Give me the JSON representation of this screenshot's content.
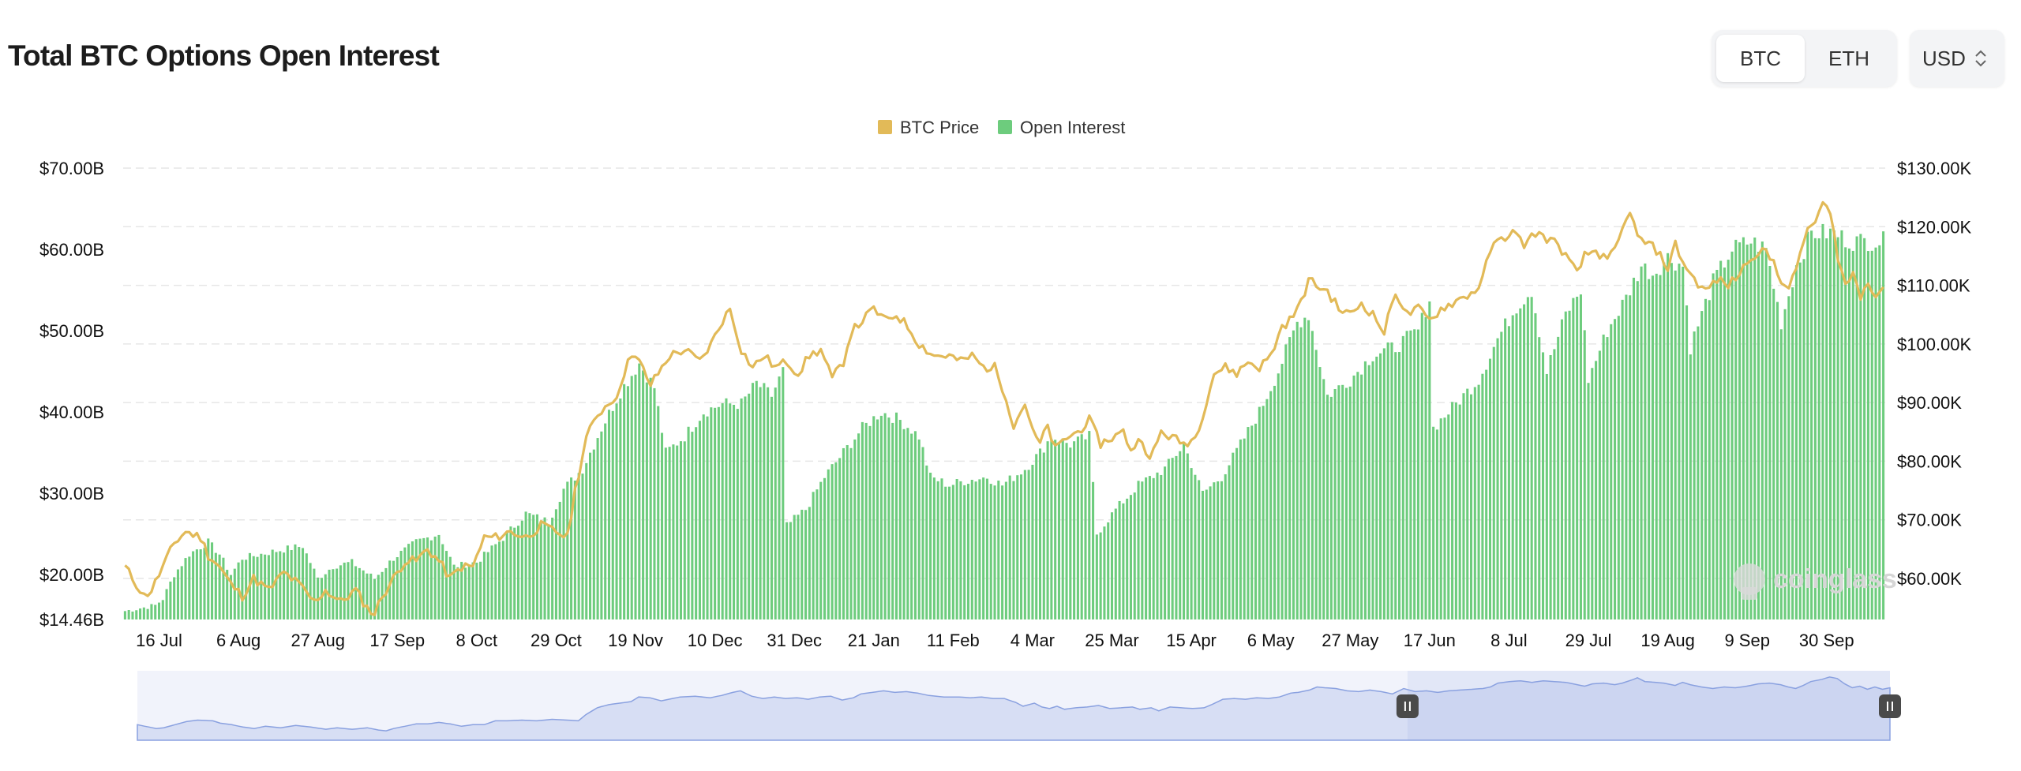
{
  "header": {
    "title": "Total BTC Options Open Interest",
    "tabs": [
      {
        "label": "BTC",
        "active": true
      },
      {
        "label": "ETH",
        "active": false
      }
    ],
    "currency": "USD",
    "currency_icon": "chevron-updown-icon"
  },
  "watermark": "coinglass",
  "colors": {
    "price": "#e2ba58",
    "open_interest": "#6dcc7d",
    "grid": "#e6e6e6",
    "navigator": "#8aa1e0"
  },
  "chart_data": {
    "type": "bar",
    "legend": [
      {
        "name": "BTC Price",
        "color": "#e2ba58",
        "type": "line"
      },
      {
        "name": "Open Interest",
        "color": "#6dcc7d",
        "type": "bar"
      }
    ],
    "left_axis": {
      "ticks": [
        "$14.46B",
        "$20.00B",
        "$30.00B",
        "$40.00B",
        "$50.00B",
        "$60.00B",
        "$70.00B"
      ],
      "tick_values": [
        14.46,
        20,
        30,
        40,
        50,
        60,
        70
      ],
      "range": [
        14.46,
        70
      ]
    },
    "right_axis": {
      "ticks": [
        "$60.00K",
        "$70.00K",
        "$80.00K",
        "$90.00K",
        "$100.00K",
        "$110.00K",
        "$120.00K",
        "$130.00K"
      ],
      "tick_values": [
        60,
        70,
        80,
        90,
        100,
        110,
        120,
        130
      ],
      "range": [
        53,
        130
      ]
    },
    "x_ticks": [
      "16 Jul",
      "6 Aug",
      "27 Aug",
      "17 Sep",
      "8 Oct",
      "29 Oct",
      "19 Nov",
      "10 Dec",
      "31 Dec",
      "21 Jan",
      "11 Feb",
      "4 Mar",
      "25 Mar",
      "15 Apr",
      "6 May",
      "27 May",
      "17 Jun",
      "8 Jul",
      "29 Jul",
      "19 Aug",
      "9 Sep",
      "30 Sep"
    ],
    "x_tick_days": [
      9,
      30,
      51,
      72,
      93,
      114,
      135,
      156,
      177,
      198,
      219,
      240,
      261,
      282,
      303,
      324,
      345,
      366,
      387,
      408,
      429,
      450
    ],
    "series": [
      {
        "name": "Open Interest",
        "unit": "billion USD",
        "daily_interpolation_knots": [
          [
            0,
            15.5
          ],
          [
            8,
            16.2
          ],
          [
            10,
            17
          ],
          [
            13,
            20
          ],
          [
            17,
            22.5
          ],
          [
            22,
            24
          ],
          [
            25,
            22.5
          ],
          [
            28,
            20
          ],
          [
            31,
            22
          ],
          [
            36,
            22.5
          ],
          [
            41,
            23
          ],
          [
            47,
            23.5
          ],
          [
            51,
            19.5
          ],
          [
            55,
            21
          ],
          [
            60,
            21.5
          ],
          [
            66,
            19.5
          ],
          [
            71,
            22
          ],
          [
            77,
            24
          ],
          [
            83,
            25
          ],
          [
            87,
            21
          ],
          [
            93,
            21.5
          ],
          [
            100,
            24.5
          ],
          [
            106,
            27.5
          ],
          [
            112,
            26.5
          ],
          [
            116,
            30.5
          ],
          [
            121,
            33
          ],
          [
            126,
            38
          ],
          [
            131,
            42.5
          ],
          [
            136,
            46
          ],
          [
            140,
            43
          ],
          [
            143,
            35
          ],
          [
            148,
            37
          ],
          [
            153,
            40
          ],
          [
            158,
            41
          ],
          [
            163,
            41
          ],
          [
            167,
            43.5
          ],
          [
            171,
            42
          ],
          [
            174,
            45
          ],
          [
            175,
            26
          ],
          [
            180,
            28
          ],
          [
            185,
            32
          ],
          [
            190,
            35
          ],
          [
            195,
            38
          ],
          [
            200,
            40
          ],
          [
            205,
            39
          ],
          [
            210,
            37
          ],
          [
            213,
            32
          ],
          [
            218,
            31
          ],
          [
            222,
            31.5
          ],
          [
            228,
            32
          ],
          [
            232,
            31
          ],
          [
            238,
            33
          ],
          [
            242,
            35
          ],
          [
            245,
            37
          ],
          [
            250,
            36
          ],
          [
            255,
            37
          ],
          [
            257,
            25
          ],
          [
            262,
            28
          ],
          [
            268,
            31
          ],
          [
            275,
            33
          ],
          [
            280,
            36
          ],
          [
            285,
            30
          ],
          [
            290,
            32
          ],
          [
            295,
            36
          ],
          [
            300,
            40
          ],
          [
            305,
            45
          ],
          [
            310,
            51
          ],
          [
            313,
            52
          ],
          [
            318,
            42
          ],
          [
            324,
            44
          ],
          [
            330,
            47
          ],
          [
            336,
            48
          ],
          [
            342,
            50
          ],
          [
            345,
            54
          ],
          [
            346,
            38
          ],
          [
            352,
            41
          ],
          [
            358,
            44
          ],
          [
            363,
            49
          ],
          [
            368,
            53
          ],
          [
            372,
            55
          ],
          [
            376,
            45
          ],
          [
            381,
            52
          ],
          [
            385,
            55
          ],
          [
            387,
            44
          ],
          [
            392,
            50
          ],
          [
            397,
            54
          ],
          [
            401,
            58
          ],
          [
            404,
            57
          ],
          [
            408,
            59
          ],
          [
            412,
            58
          ],
          [
            414,
            48
          ],
          [
            420,
            56
          ],
          [
            425,
            60
          ],
          [
            430,
            61
          ],
          [
            434,
            60
          ],
          [
            438,
            51
          ],
          [
            442,
            58
          ],
          [
            446,
            62
          ],
          [
            452,
            62
          ],
          [
            456,
            61
          ]
        ]
      },
      {
        "name": "BTC Price",
        "unit": "thousand USD",
        "daily_interpolation_knots": [
          [
            0,
            62
          ],
          [
            3,
            59
          ],
          [
            5,
            57
          ],
          [
            7,
            58
          ],
          [
            10,
            62
          ],
          [
            13,
            66
          ],
          [
            16,
            68
          ],
          [
            20,
            67
          ],
          [
            22,
            64
          ],
          [
            25,
            62
          ],
          [
            28,
            59
          ],
          [
            31,
            57
          ],
          [
            34,
            60
          ],
          [
            38,
            58
          ],
          [
            42,
            61
          ],
          [
            46,
            59
          ],
          [
            50,
            56
          ],
          [
            53,
            58
          ],
          [
            57,
            56
          ],
          [
            61,
            58
          ],
          [
            64,
            55
          ],
          [
            66,
            54
          ],
          [
            68,
            57
          ],
          [
            71,
            60
          ],
          [
            74,
            63
          ],
          [
            77,
            63
          ],
          [
            80,
            65
          ],
          [
            83,
            63
          ],
          [
            86,
            60
          ],
          [
            89,
            62
          ],
          [
            92,
            62
          ],
          [
            95,
            67
          ],
          [
            98,
            67
          ],
          [
            102,
            68
          ],
          [
            106,
            67
          ],
          [
            110,
            69
          ],
          [
            114,
            68
          ],
          [
            117,
            67
          ],
          [
            119,
            75
          ],
          [
            122,
            84
          ],
          [
            125,
            88
          ],
          [
            128,
            90
          ],
          [
            131,
            92
          ],
          [
            133,
            98
          ],
          [
            136,
            97
          ],
          [
            139,
            93
          ],
          [
            141,
            95
          ],
          [
            144,
            98
          ],
          [
            148,
            99
          ],
          [
            152,
            97
          ],
          [
            155,
            100
          ],
          [
            158,
            104
          ],
          [
            160,
            106
          ],
          [
            163,
            99
          ],
          [
            166,
            96
          ],
          [
            169,
            98
          ],
          [
            172,
            96
          ],
          [
            175,
            97
          ],
          [
            178,
            95
          ],
          [
            181,
            98
          ],
          [
            184,
            99
          ],
          [
            187,
            94
          ],
          [
            190,
            97
          ],
          [
            192,
            102
          ],
          [
            195,
            104
          ],
          [
            198,
            106
          ],
          [
            201,
            104
          ],
          [
            204,
            105
          ],
          [
            207,
            103
          ],
          [
            210,
            100
          ],
          [
            214,
            98
          ],
          [
            218,
            98
          ],
          [
            221,
            97
          ],
          [
            224,
            98
          ],
          [
            227,
            96
          ],
          [
            230,
            96
          ],
          [
            233,
            91
          ],
          [
            235,
            86
          ],
          [
            238,
            90
          ],
          [
            240,
            85
          ],
          [
            242,
            83
          ],
          [
            244,
            86
          ],
          [
            246,
            82
          ],
          [
            249,
            84
          ],
          [
            252,
            85
          ],
          [
            255,
            87
          ],
          [
            258,
            83
          ],
          [
            261,
            84
          ],
          [
            264,
            85
          ],
          [
            266,
            82
          ],
          [
            269,
            84
          ],
          [
            271,
            80
          ],
          [
            274,
            85
          ],
          [
            277,
            84
          ],
          [
            280,
            83
          ],
          [
            283,
            84
          ],
          [
            285,
            88
          ],
          [
            288,
            95
          ],
          [
            291,
            96
          ],
          [
            294,
            95
          ],
          [
            297,
            97
          ],
          [
            300,
            96
          ],
          [
            303,
            98
          ],
          [
            306,
            103
          ],
          [
            308,
            104
          ],
          [
            311,
            107
          ],
          [
            313,
            111
          ],
          [
            315,
            110
          ],
          [
            318,
            109
          ],
          [
            321,
            106
          ],
          [
            324,
            105
          ],
          [
            327,
            107
          ],
          [
            330,
            105
          ],
          [
            333,
            102
          ],
          [
            336,
            109
          ],
          [
            339,
            105
          ],
          [
            342,
            106
          ],
          [
            345,
            104
          ],
          [
            348,
            106
          ],
          [
            351,
            107
          ],
          [
            354,
            108
          ],
          [
            357,
            109
          ],
          [
            359,
            111
          ],
          [
            361,
            116
          ],
          [
            364,
            118
          ],
          [
            367,
            119
          ],
          [
            370,
            117
          ],
          [
            373,
            119
          ],
          [
            376,
            118
          ],
          [
            379,
            117
          ],
          [
            382,
            114
          ],
          [
            384,
            112
          ],
          [
            386,
            115
          ],
          [
            389,
            116
          ],
          [
            392,
            114
          ],
          [
            394,
            116
          ],
          [
            397,
            121
          ],
          [
            398,
            123
          ],
          [
            400,
            118
          ],
          [
            403,
            117
          ],
          [
            405,
            116
          ],
          [
            408,
            113
          ],
          [
            410,
            117
          ],
          [
            412,
            114
          ],
          [
            415,
            111
          ],
          [
            418,
            109
          ],
          [
            421,
            111
          ],
          [
            424,
            110
          ],
          [
            427,
            112
          ],
          [
            430,
            115
          ],
          [
            433,
            116
          ],
          [
            436,
            114
          ],
          [
            438,
            111
          ],
          [
            440,
            109
          ],
          [
            442,
            113
          ],
          [
            444,
            118
          ],
          [
            447,
            121
          ],
          [
            449,
            124
          ],
          [
            451,
            122
          ],
          [
            453,
            115
          ],
          [
            455,
            110
          ],
          [
            457,
            112
          ],
          [
            459,
            108
          ],
          [
            461,
            111
          ],
          [
            463,
            108
          ],
          [
            465,
            110
          ]
        ]
      }
    ],
    "grid": true,
    "legend_position": "top-center",
    "navigator": {
      "present": true,
      "selected_range": [
        "8 Jul",
        "end"
      ]
    }
  }
}
